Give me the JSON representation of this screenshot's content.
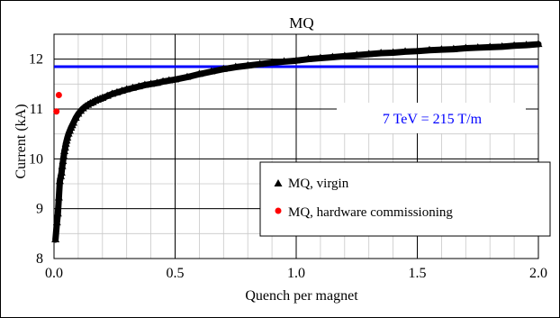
{
  "chart_data": {
    "type": "scatter",
    "title": "MQ",
    "xlabel": "Quench per magnet",
    "ylabel": "Current (kA)",
    "xlim": [
      0,
      2.0
    ],
    "ylim": [
      8,
      12.5
    ],
    "x_ticks": [
      "0.0",
      "0.5",
      "1.0",
      "1.5",
      "2.0"
    ],
    "y_ticks": [
      "8",
      "9",
      "10",
      "11",
      "12"
    ],
    "grid": "major and minor",
    "legend_position": "lower-right",
    "reference_line": {
      "y": 11.85,
      "label": "7 TeV = 215 T/m",
      "color": "#0000ff"
    },
    "series": [
      {
        "name": "MQ, virgin",
        "marker": "triangle",
        "color": "#000000",
        "x": [
          0.006,
          0.012,
          0.016,
          0.02,
          0.024,
          0.028,
          0.031,
          0.034,
          0.037,
          0.04,
          0.043,
          0.046,
          0.049,
          0.052,
          0.055,
          0.06,
          0.065,
          0.07,
          0.075,
          0.08,
          0.09,
          0.1,
          0.11,
          0.12,
          0.13,
          0.14,
          0.15,
          0.16,
          0.17,
          0.18,
          0.19,
          0.2,
          0.22,
          0.24,
          0.26,
          0.28,
          0.3,
          0.325,
          0.35,
          0.375,
          0.4,
          0.425,
          0.45,
          0.475,
          0.5,
          0.55,
          0.6,
          0.65,
          0.7,
          0.75,
          0.8,
          0.85,
          0.9,
          0.95,
          1.0,
          1.05,
          1.1,
          1.15,
          1.2,
          1.25,
          1.3,
          1.35,
          1.4,
          1.45,
          1.5,
          1.55,
          1.6,
          1.65,
          1.7,
          1.75,
          1.8,
          1.85,
          1.9,
          1.95,
          2.0
        ],
        "y": [
          8.38,
          8.72,
          8.9,
          9.22,
          9.55,
          9.65,
          9.72,
          9.85,
          9.95,
          10.05,
          10.15,
          10.22,
          10.3,
          10.36,
          10.42,
          10.5,
          10.56,
          10.62,
          10.67,
          10.72,
          10.82,
          10.9,
          10.96,
          11.01,
          11.05,
          11.08,
          11.11,
          11.13,
          11.16,
          11.18,
          11.2,
          11.22,
          11.26,
          11.3,
          11.33,
          11.36,
          11.39,
          11.42,
          11.45,
          11.48,
          11.5,
          11.52,
          11.55,
          11.57,
          11.59,
          11.64,
          11.7,
          11.75,
          11.8,
          11.84,
          11.87,
          11.9,
          11.93,
          11.95,
          11.97,
          12.0,
          12.02,
          12.04,
          12.06,
          12.08,
          12.1,
          12.12,
          12.13,
          12.15,
          12.16,
          12.18,
          12.19,
          12.2,
          12.22,
          12.23,
          12.24,
          12.25,
          12.27,
          12.28,
          12.3
        ]
      },
      {
        "name": "MQ, hardware commissioning",
        "marker": "circle",
        "color": "#ff0000",
        "x": [
          0.01,
          0.02
        ],
        "y": [
          10.95,
          11.28
        ]
      }
    ]
  }
}
